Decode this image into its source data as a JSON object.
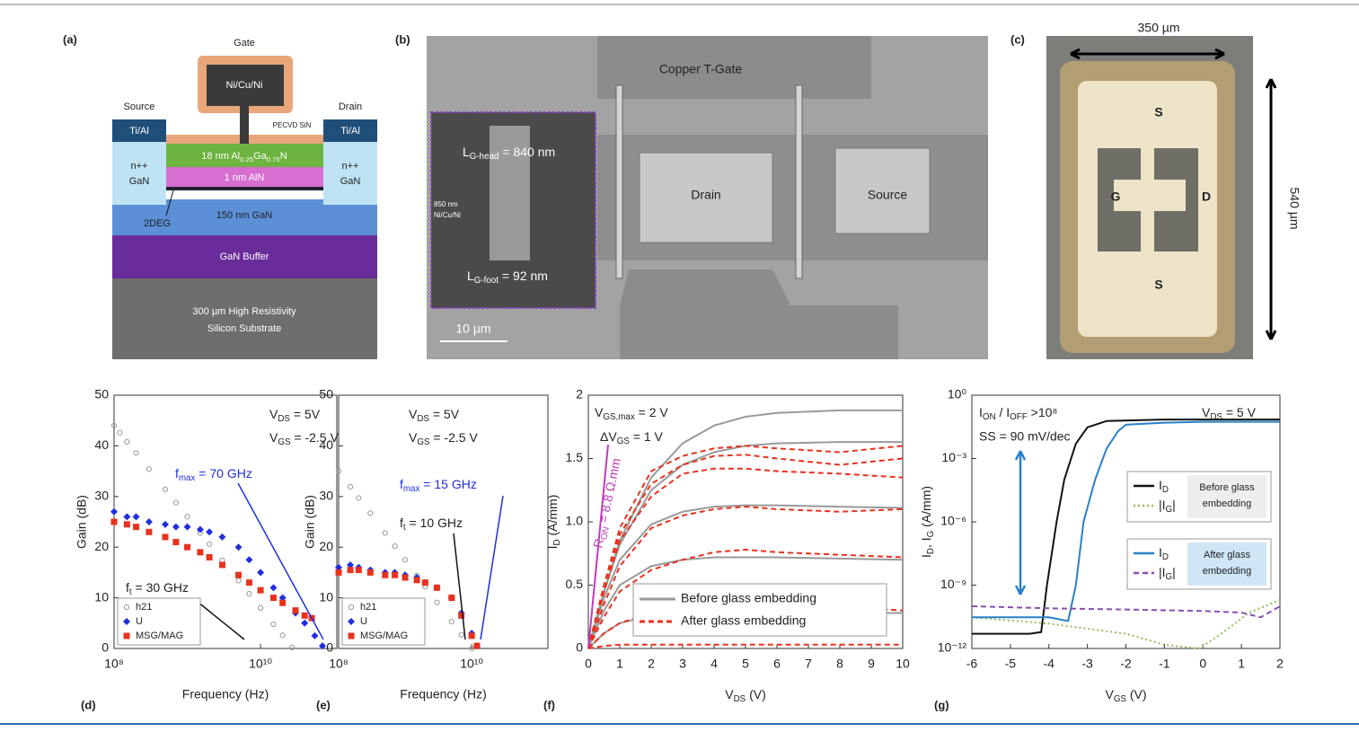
{
  "panels": {
    "a": {
      "label": "(a)",
      "gate": "Gate",
      "gate_metal": "Ni/Cu/Ni",
      "source": "Source",
      "drain": "Drain",
      "contact_left": "Ti/Al",
      "contact_right": "Ti/Al",
      "passivation": "PECVD SiN",
      "barrier": [
        "18 nm Al",
        [
          "0.25"
        ],
        "Ga",
        [
          "0.75"
        ],
        "N"
      ],
      "npp_left": [
        "n++",
        "GaN"
      ],
      "npp_right": [
        "n++",
        "GaN"
      ],
      "interlayer": "1 nm AlN",
      "channel": "150 nm GaN",
      "twodeg": "2DEG",
      "buffer": "GaN Buffer",
      "substrate": [
        "300 µm High Resistivity",
        "Silicon Substrate"
      ]
    },
    "b": {
      "label": "(b)",
      "gate": "Copper T-Gate",
      "drain": "Drain",
      "source": "Source",
      "head": [
        "L",
        [
          "G-head"
        ],
        " = 840 nm"
      ],
      "foot": [
        "L",
        [
          "G-foot"
        ],
        " = 92 nm"
      ],
      "stack": [
        "850 nm",
        "Ni/Cu/Ni"
      ],
      "scale": "10 µm"
    },
    "c": {
      "label": "(c)",
      "width": "350 µm",
      "height": "540 µm",
      "s_top": "S",
      "g": "G",
      "d": "D",
      "s_bottom": "S"
    }
  },
  "chart_data": [
    {
      "type": "scatter",
      "label": "(d)",
      "xlabel": "Frequency (Hz)",
      "ylabel": "Gain (dB)",
      "xlog": true,
      "xlim": [
        100000000.0,
        110000000000.0
      ],
      "xticks": [
        {
          "value": 100000000.0,
          "label": "10⁸"
        },
        {
          "value": 10000000000.0,
          "label": "10¹⁰"
        }
      ],
      "ylim": [
        0,
        50
      ],
      "yticks": [
        0,
        10,
        20,
        30,
        40,
        50
      ],
      "legend": "lower left",
      "series": [
        {
          "name": "h21",
          "color": "#999999",
          "marker": "open-circle",
          "x": [
            100000000.0,
            120000000.0,
            150000000.0,
            200000000.0,
            300000000.0,
            500000000.0,
            700000000.0,
            1000000000.0,
            1500000000.0,
            2000000000.0,
            3000000000.0,
            5000000000.0,
            7000000000.0,
            10000000000.0,
            15000000000.0,
            20000000000.0,
            27000000000.0
          ],
          "values": [
            44,
            42.6,
            40.8,
            38.6,
            35.4,
            31.4,
            28.8,
            26,
            22.8,
            20.6,
            17.4,
            13.4,
            10.8,
            8,
            4.8,
            2.6,
            0.2
          ]
        },
        {
          "name": "U",
          "color": "#1f2fe0",
          "marker": "diamond",
          "x": [
            100000000.0,
            150000000.0,
            200000000.0,
            300000000.0,
            500000000.0,
            700000000.0,
            1000000000.0,
            1500000000.0,
            2000000000.0,
            3000000000.0,
            5000000000.0,
            7000000000.0,
            10000000000.0,
            15000000000.0,
            20000000000.0,
            30000000000.0,
            40000000000.0,
            55000000000.0,
            70000000000.0
          ],
          "values": [
            27,
            26,
            26,
            25,
            24.5,
            24,
            24,
            23.5,
            23,
            22,
            20,
            17.5,
            15,
            12,
            10,
            7,
            5,
            2.5,
            0.5
          ]
        },
        {
          "name": "MSG/MAG",
          "color": "#e8321e",
          "marker": "square",
          "x": [
            100000000.0,
            150000000.0,
            200000000.0,
            300000000.0,
            500000000.0,
            700000000.0,
            1000000000.0,
            1500000000.0,
            2000000000.0,
            3000000000.0,
            5000000000.0,
            7000000000.0,
            10000000000.0,
            15000000000.0,
            20000000000.0,
            30000000000.0,
            40000000000.0,
            50000000000.0
          ],
          "values": [
            25,
            24.5,
            24,
            23,
            22,
            21,
            20,
            19,
            18,
            16.5,
            14.5,
            13,
            11.5,
            10,
            9,
            7.5,
            6.5,
            6
          ]
        }
      ],
      "annotations": [
        [
          "V",
          [
            "DS"
          ],
          " = 5V"
        ],
        [
          "V",
          [
            "GS"
          ],
          " = -2.5 V"
        ],
        [
          "f",
          [
            "max"
          ],
          " = 70 GHz"
        ],
        [
          "f",
          [
            "t"
          ],
          " = 30 GHz"
        ]
      ]
    },
    {
      "type": "scatter",
      "label": "(e)",
      "xlabel": "Frequency (Hz)",
      "ylabel": "Gain (dB)",
      "xlog": true,
      "xlim": [
        100000000.0,
        140000000000.0
      ],
      "xticks": [
        {
          "value": 100000000.0,
          "label": "10⁸"
        },
        {
          "value": 10000000000.0,
          "label": "10¹⁰"
        }
      ],
      "ylim": [
        0,
        50
      ],
      "yticks": [
        0,
        10,
        20,
        30,
        40,
        50
      ],
      "legend": "lower left",
      "series": [
        {
          "name": "h21",
          "color": "#999999",
          "marker": "open-circle",
          "x": [
            100000000.0,
            150000000.0,
            200000000.0,
            300000000.0,
            500000000.0,
            700000000.0,
            1000000000.0,
            1500000000.0,
            2000000000.0,
            3000000000.0,
            5000000000.0,
            7000000000.0,
            10000000000.0
          ],
          "values": [
            35,
            31.9,
            29.7,
            26.7,
            22.8,
            20.2,
            17.5,
            14.4,
            12.2,
            9.1,
            5.3,
            2.7,
            0
          ]
        },
        {
          "name": "U",
          "color": "#1f2fe0",
          "marker": "diamond",
          "x": [
            100000000.0,
            150000000.0,
            200000000.0,
            300000000.0,
            500000000.0,
            700000000.0,
            1000000000.0,
            1500000000.0,
            2000000000.0,
            3000000000.0,
            5000000000.0,
            7000000000.0,
            10000000000.0,
            12000000000.0
          ],
          "values": [
            16,
            16.5,
            16,
            15.5,
            15,
            15,
            14.5,
            14,
            13,
            12,
            10,
            7,
            3,
            0.5
          ]
        },
        {
          "name": "MSG/MAG",
          "color": "#e8321e",
          "marker": "square",
          "x": [
            100000000.0,
            150000000.0,
            200000000.0,
            300000000.0,
            500000000.0,
            700000000.0,
            1000000000.0,
            1500000000.0,
            2000000000.0,
            3000000000.0,
            5000000000.0,
            7000000000.0,
            10000000000.0,
            12000000000.0
          ],
          "values": [
            15,
            15.5,
            15.5,
            15,
            14.5,
            14.5,
            14,
            13.5,
            13,
            12,
            10,
            6.5,
            2.5,
            0.5
          ]
        }
      ],
      "annotations": [
        [
          "V",
          [
            "DS"
          ],
          " = 5V"
        ],
        [
          "V",
          [
            "GS"
          ],
          " = -2.5 V"
        ],
        [
          "f",
          [
            "max"
          ],
          " = 15 GHz"
        ],
        [
          "f",
          [
            "t"
          ],
          " = 10 GHz"
        ]
      ]
    },
    {
      "type": "line",
      "label": "(f)",
      "xlabel": [
        "V",
        [
          "DS"
        ],
        " (V)"
      ],
      "ylabel": [
        "I",
        [
          "D"
        ],
        " (A/mm)"
      ],
      "xlim": [
        0,
        10
      ],
      "xticks": [
        0,
        1,
        2,
        3,
        4,
        5,
        6,
        7,
        8,
        9,
        10
      ],
      "ylim": [
        0,
        2
      ],
      "yticks": [
        0,
        0.5,
        {
          "value": 1,
          "label": "1.0"
        },
        1.5,
        2
      ],
      "legend": "lower right",
      "x": [
        0,
        0.5,
        1,
        2,
        3,
        4,
        5,
        6,
        8,
        10
      ],
      "series": [
        {
          "name": "Before glass embedding",
          "color": "#9a9a9a",
          "dash": "solid",
          "curves": [
            [
              0,
              0.45,
              0.85,
              1.35,
              1.62,
              1.76,
              1.83,
              1.86,
              1.88,
              1.88
            ],
            [
              0,
              0.45,
              0.82,
              1.25,
              1.45,
              1.55,
              1.6,
              1.62,
              1.63,
              1.63
            ],
            [
              0,
              0.4,
              0.7,
              0.98,
              1.08,
              1.12,
              1.13,
              1.13,
              1.12,
              1.11
            ],
            [
              0,
              0.3,
              0.5,
              0.65,
              0.7,
              0.72,
              0.72,
              0.72,
              0.71,
              0.7
            ],
            [
              0,
              0.12,
              0.2,
              0.26,
              0.28,
              0.28,
              0.28,
              0.28,
              0.28,
              0.28
            ]
          ]
        },
        {
          "name": "After glass embedding",
          "color": "#e8321e",
          "dash": "dashed",
          "curves": [
            [
              0,
              0.5,
              0.95,
              1.4,
              1.52,
              1.58,
              1.6,
              1.58,
              1.55,
              1.6
            ],
            [
              0,
              0.5,
              0.9,
              1.3,
              1.45,
              1.52,
              1.53,
              1.5,
              1.45,
              1.5
            ],
            [
              0,
              0.45,
              0.85,
              1.2,
              1.38,
              1.42,
              1.42,
              1.4,
              1.38,
              1.35
            ],
            [
              0,
              0.35,
              0.65,
              0.95,
              1.05,
              1.1,
              1.12,
              1.1,
              1.08,
              1.1
            ],
            [
              0,
              0.25,
              0.45,
              0.62,
              0.7,
              0.76,
              0.78,
              0.76,
              0.74,
              0.72
            ],
            [
              0,
              0.12,
              0.2,
              0.28,
              0.32,
              0.35,
              0.36,
              0.35,
              0.33,
              0.3
            ],
            [
              0,
              0.02,
              0.03,
              0.03,
              0.03,
              0.03,
              0.03,
              0.03,
              0.03,
              0.03
            ]
          ]
        }
      ],
      "annotations": [
        [
          "V",
          [
            "GS,max"
          ],
          " = 2 V"
        ],
        [
          "ΔV",
          [
            "GS"
          ],
          " = 1 V"
        ],
        [
          "R",
          [
            "ON"
          ],
          " = 8.8 Ω.mm"
        ]
      ]
    },
    {
      "type": "line",
      "label": "(g)",
      "xlabel": [
        "V",
        [
          "GS"
        ],
        " (V)"
      ],
      "ylabel": [
        "I",
        [
          "D"
        ],
        ", I",
        [
          "G"
        ],
        " (A/mm)"
      ],
      "xlim": [
        -6,
        2
      ],
      "xticks": [
        -6,
        -5,
        -4,
        -3,
        -2,
        -1,
        0,
        1,
        2
      ],
      "ylog": true,
      "ylim": [
        1e-12,
        1
      ],
      "yticks": [
        {
          "value": 1,
          "label": "10⁰"
        },
        {
          "value": 0.001,
          "label": "10⁻³"
        },
        {
          "value": 1e-06,
          "label": "10⁻⁶"
        },
        {
          "value": 1e-09,
          "label": "10⁻⁹"
        },
        {
          "value": 1e-12,
          "label": "10⁻¹²"
        }
      ],
      "legend": "right",
      "legend_groups": [
        [
          "Before glass",
          "embedding"
        ],
        [
          "After glass",
          "embedding"
        ]
      ],
      "series": [
        {
          "name": [
            "I",
            [
              "D"
            ]
          ],
          "color": "#111111",
          "dash": "solid",
          "x": [
            -6,
            -5,
            -4.5,
            -4.2,
            -4.05,
            -3.8,
            -3.6,
            -3.3,
            -3,
            -2.5,
            -1,
            0,
            1,
            2
          ],
          "values": [
            5e-12,
            5e-12,
            5e-12,
            6e-12,
            1e-09,
            1e-06,
            0.0001,
            0.005,
            0.03,
            0.06,
            0.07,
            0.07,
            0.07,
            0.07
          ]
        },
        {
          "name": [
            "|I",
            [
              "G"
            ],
            "|"
          ],
          "color": "#8fbf5a",
          "dash": "dotted",
          "x": [
            -6,
            -4,
            -2,
            -1,
            -0.1,
            0.3,
            0.7,
            1.2,
            2
          ],
          "values": [
            3e-11,
            1.5e-11,
            5e-12,
            1.5e-12,
            1e-12,
            3e-12,
            1e-11,
            5e-11,
            2e-10
          ]
        },
        {
          "name": [
            "I",
            [
              "D"
            ]
          ],
          "color": "#2a7fc9",
          "dash": "solid",
          "x": [
            -6,
            -4,
            -3.5,
            -3.3,
            -3.1,
            -2.8,
            -2.5,
            -2.2,
            -2,
            -1,
            0,
            1,
            2
          ],
          "values": [
            3e-11,
            3e-11,
            2e-11,
            1e-09,
            1e-06,
            0.0001,
            0.003,
            0.02,
            0.04,
            0.05,
            0.055,
            0.055,
            0.055
          ]
        },
        {
          "name": [
            "|I",
            [
              "G"
            ],
            "|"
          ],
          "color": "#8a4fb0",
          "dash": "dashed",
          "x": [
            -6,
            -4,
            -2,
            0,
            1,
            1.5,
            2
          ],
          "values": [
            1e-10,
            8e-11,
            7e-11,
            6e-11,
            5e-11,
            3e-11,
            1e-10
          ]
        }
      ],
      "annotations": [
        [
          "I",
          [
            "ON"
          ],
          " / I",
          [
            "OFF"
          ],
          " >10⁸"
        ],
        "SS = 90 mV/dec",
        [
          "V",
          [
            "DS"
          ],
          " = 5 V"
        ]
      ]
    }
  ]
}
